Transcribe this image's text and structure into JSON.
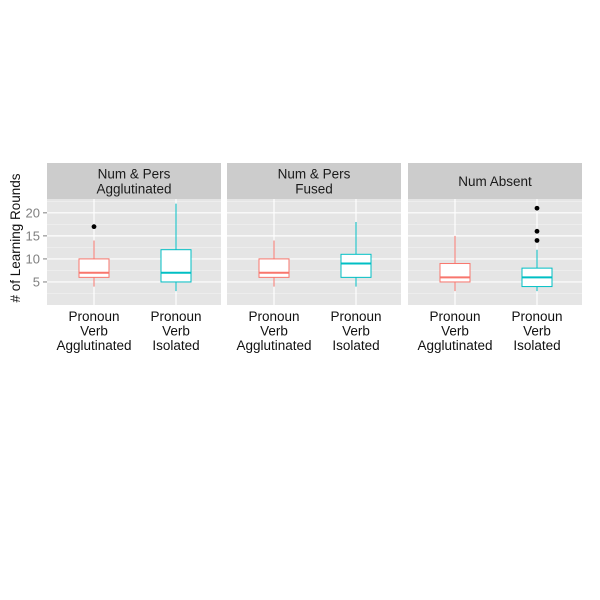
{
  "chart_data": {
    "type": "boxplot",
    "ylabel": "# of Learning Rounds",
    "ylim": [
      0,
      23
    ],
    "yticks": [
      5,
      10,
      15,
      20
    ],
    "grid": true,
    "legend": "none",
    "colors": {
      "Pronoun Verb Agglutinated": "#F8766D",
      "Pronoun Verb Isolated": "#00BFC4"
    },
    "panels": [
      {
        "title": [
          "Num & Pers",
          "Agglutinated"
        ],
        "boxes": [
          {
            "category": [
              "Pronoun",
              "Verb",
              "Agglutinated"
            ],
            "min": 4,
            "q1": 6,
            "median": 7,
            "q3": 10,
            "max": 14,
            "outliers": [
              17
            ]
          },
          {
            "category": [
              "Pronoun",
              "Verb",
              "Isolated"
            ],
            "min": 3,
            "q1": 5,
            "median": 7,
            "q3": 12,
            "max": 22,
            "outliers": []
          }
        ]
      },
      {
        "title": [
          "Num & Pers",
          "Fused"
        ],
        "boxes": [
          {
            "category": [
              "Pronoun",
              "Verb",
              "Agglutinated"
            ],
            "min": 4,
            "q1": 6,
            "median": 7,
            "q3": 10,
            "max": 14,
            "outliers": []
          },
          {
            "category": [
              "Pronoun",
              "Verb",
              "Isolated"
            ],
            "min": 4,
            "q1": 6,
            "median": 9,
            "q3": 11,
            "max": 18,
            "outliers": []
          }
        ]
      },
      {
        "title": [
          "Num Absent"
        ],
        "boxes": [
          {
            "category": [
              "Pronoun",
              "Verb",
              "Agglutinated"
            ],
            "min": 3,
            "q1": 5,
            "median": 6,
            "q3": 9,
            "max": 15,
            "outliers": []
          },
          {
            "category": [
              "Pronoun",
              "Verb",
              "Isolated"
            ],
            "min": 3,
            "q1": 4,
            "median": 6,
            "q3": 8,
            "max": 12,
            "outliers": [
              14,
              16,
              21
            ]
          }
        ]
      }
    ]
  }
}
